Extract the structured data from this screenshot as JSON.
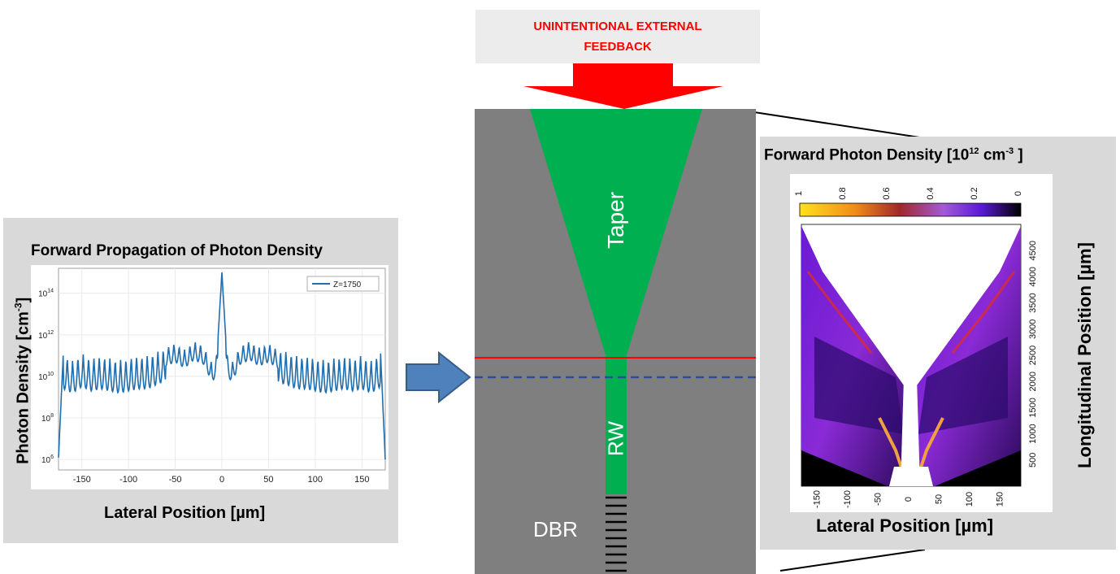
{
  "feedback": {
    "line1": "UNINTENTIONAL EXTERNAL",
    "line2": "FEEDBACK",
    "color": "#ff0000"
  },
  "device": {
    "taper_label": "Taper",
    "rw_label": "RW",
    "dbr_label": "DBR",
    "body_color": "#7f7f7f",
    "waveguide_color": "#00b050",
    "red_line_color": "#ff0000",
    "blue_dash_color": "#2e4b9c"
  },
  "left_panel": {
    "title": "Forward Propagation of Photon Density",
    "ylabel_main": "Photon Density",
    "ylabel_unit": "[cm",
    "ylabel_sup": "-3",
    "ylabel_close": "]",
    "xlabel": "Lateral Position [µm]",
    "legend": "Z=1750",
    "x_ticks": [
      "-150",
      "-100",
      "-50",
      "0",
      "50",
      "100",
      "150"
    ],
    "y_ticks": [
      {
        "base": "10",
        "exp": "6"
      },
      {
        "base": "10",
        "exp": "8"
      },
      {
        "base": "10",
        "exp": "10"
      },
      {
        "base": "10",
        "exp": "12"
      },
      {
        "base": "10",
        "exp": "14"
      }
    ]
  },
  "right_panel": {
    "title_main": "Forward Photon Density [10",
    "title_sup": "12",
    "title_unit": " cm",
    "title_sup2": "-3",
    "title_close": " ]",
    "xlabel": "Lateral Position [µm]",
    "ylabel": "Longitudinal   Position [µm]",
    "colorbar_ticks": [
      "1",
      "0.8",
      "0.6",
      "0.4",
      "0.2",
      "0"
    ],
    "x_ticks": [
      "-150",
      "-100",
      "-50",
      "0",
      "50",
      "100",
      "150"
    ],
    "y_ticks": [
      "500",
      "1000",
      "1500",
      "2000",
      "2500",
      "3000",
      "3500",
      "4000",
      "4500"
    ]
  },
  "chart_data": [
    {
      "type": "line",
      "title": "Forward Propagation of Photon Density",
      "xlabel": "Lateral Position [µm]",
      "ylabel": "Photon Density [cm-3]",
      "xlim": [
        -175,
        175
      ],
      "ylim_log10": [
        5.5,
        15.2
      ],
      "yscale": "log",
      "grid": true,
      "legend_position": "top-right",
      "series": [
        {
          "name": "Z=1750",
          "x": [
            -175,
            -170,
            -160,
            -150,
            -140,
            -130,
            -120,
            -110,
            -100,
            -90,
            -80,
            -70,
            -60,
            -50,
            -40,
            -30,
            -20,
            -10,
            -5,
            0,
            5,
            10,
            20,
            30,
            40,
            50,
            60,
            70,
            80,
            90,
            100,
            110,
            120,
            130,
            140,
            150,
            160,
            170,
            175
          ],
          "y_log10": [
            6.1,
            11.0,
            10.8,
            11.1,
            10.9,
            11.0,
            10.9,
            10.8,
            10.9,
            11.0,
            11.0,
            11.2,
            11.4,
            11.6,
            11.3,
            11.7,
            11.5,
            10.6,
            11.2,
            15.0,
            11.2,
            10.6,
            11.5,
            11.7,
            11.4,
            11.6,
            11.3,
            11.2,
            11.0,
            11.0,
            10.9,
            10.8,
            10.9,
            11.0,
            10.9,
            11.0,
            10.8,
            11.1,
            6.0
          ]
        }
      ]
    }
  ]
}
